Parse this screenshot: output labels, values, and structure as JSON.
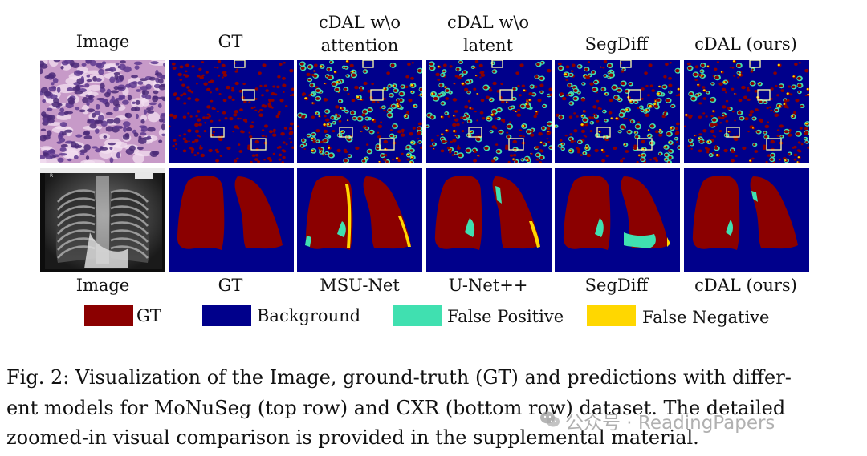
{
  "figure": {
    "top_headers": [
      "Image",
      "GT",
      "cDAL w\\o attention",
      "cDAL w\\o latent",
      "SegDiff",
      "cDAL (ours)"
    ],
    "top_header_lines": [
      [
        "Image"
      ],
      [
        "GT"
      ],
      [
        "cDAL w\\o",
        "attention"
      ],
      [
        "cDAL w\\o",
        "latent"
      ],
      [
        "SegDiff"
      ],
      [
        "cDAL (ours)"
      ]
    ],
    "bottom_headers": [
      "Image",
      "GT",
      "MSU-Net",
      "U-Net++",
      "SegDiff",
      "cDAL (ours)"
    ],
    "panel_descriptions": {
      "top_row": "MoNuSeg",
      "bottom_row": "CXR"
    }
  },
  "legend": {
    "items": [
      {
        "label": "GT",
        "color": "#8B0000"
      },
      {
        "label": "Background",
        "color": "#00008B"
      },
      {
        "label": "False Positive",
        "color": "#40E0B0"
      },
      {
        "label": "False Negative",
        "color": "#FFD700"
      }
    ]
  },
  "caption": {
    "lines": [
      "Fig. 2: Visualization of the Image, ground-truth (GT) and predictions with differ-",
      "ent models for MoNuSeg (top row) and CXR (bottom row) dataset. The detailed",
      "zoomed-in visual comparison is provided in the supplemental material."
    ]
  },
  "watermark": {
    "text": "公众号 · ReadingPapers"
  },
  "colors": {
    "gt_red": "#8B0000",
    "background_blue": "#00008B",
    "false_positive": "#40E0B0",
    "false_negative": "#FFD700"
  }
}
